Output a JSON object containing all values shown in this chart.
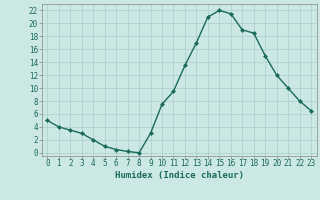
{
  "x": [
    0,
    1,
    2,
    3,
    4,
    5,
    6,
    7,
    8,
    9,
    10,
    11,
    12,
    13,
    14,
    15,
    16,
    17,
    18,
    19,
    20,
    21,
    22,
    23
  ],
  "y": [
    5,
    4,
    3.5,
    3,
    2,
    1,
    0.5,
    0.2,
    0,
    3,
    7.5,
    9.5,
    13.5,
    17,
    21,
    22,
    21.5,
    19,
    18.5,
    15,
    12,
    10,
    8,
    6.5
  ],
  "line_color": "#1a6b5a",
  "marker": "D",
  "marker_size": 2.0,
  "bg_color": "#cce8e4",
  "grid_color": "#aacfcc",
  "xlabel": "Humidex (Indice chaleur)",
  "xlim": [
    -0.5,
    23.5
  ],
  "ylim": [
    -0.5,
    23
  ],
  "yticks": [
    0,
    2,
    4,
    6,
    8,
    10,
    12,
    14,
    16,
    18,
    20,
    22
  ],
  "xticks": [
    0,
    1,
    2,
    3,
    4,
    5,
    6,
    7,
    8,
    9,
    10,
    11,
    12,
    13,
    14,
    15,
    16,
    17,
    18,
    19,
    20,
    21,
    22,
    23
  ],
  "xlabel_fontsize": 6.5,
  "tick_fontsize": 5.5,
  "line_width": 1.0,
  "spine_color": "#888888"
}
